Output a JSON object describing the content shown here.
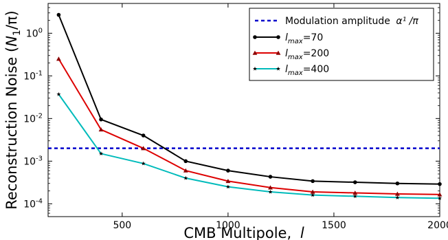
{
  "chart_data": {
    "type": "line",
    "title": "",
    "xlabel": "CMB Multipole, l",
    "ylabel": "Reconstruction Noise (N1/π)",
    "xlim": [
      150,
      2000
    ],
    "ylim": [
      5e-05,
      5
    ],
    "yscale": "log",
    "grid": false,
    "legend_position": "top-right",
    "x_ticks": [
      500,
      1000,
      1500,
      2000
    ],
    "x_tick_labels": [
      "500",
      "1000",
      "1500",
      "2000"
    ],
    "y_ticks": [
      0.0001,
      0.001,
      0.01,
      0.1,
      1
    ],
    "y_tick_labels": [
      {
        "base": "10",
        "exp": "-4"
      },
      {
        "base": "10",
        "exp": "-3"
      },
      {
        "base": "10",
        "exp": "-2"
      },
      {
        "base": "10",
        "exp": "-1"
      },
      {
        "base": "10",
        "exp": "0"
      }
    ],
    "reference_line": {
      "name": "Modulation amplitude α1/π",
      "value": 0.002,
      "color": "#0000cc",
      "style": "dashed"
    },
    "x": [
      200,
      400,
      600,
      800,
      1000,
      1200,
      1400,
      1600,
      1800,
      2000
    ],
    "series": [
      {
        "name": "lmax=70",
        "color": "#000000",
        "marker": "circle",
        "values": [
          2.7,
          0.0095,
          0.004,
          0.001,
          0.0006,
          0.00043,
          0.00034,
          0.00032,
          0.0003,
          0.00029
        ]
      },
      {
        "name": "lmax=200",
        "color": "#dd0000",
        "marker": "triangle",
        "values": [
          0.25,
          0.0055,
          0.002,
          0.0006,
          0.00034,
          0.00024,
          0.00019,
          0.00018,
          0.00017,
          0.000165
        ]
      },
      {
        "name": "lmax=400",
        "color": "#00bbbb",
        "marker": "star",
        "values": [
          0.037,
          0.0015,
          0.00088,
          0.0004,
          0.00025,
          0.00019,
          0.00016,
          0.00015,
          0.00014,
          0.000135
        ]
      }
    ]
  },
  "legend": {
    "ref_label": "Modulation amplitude",
    "ref_math": "α¹ /π",
    "lmax_symbol": "l",
    "lmax_sub": "max",
    "items": [
      {
        "value": "=70"
      },
      {
        "value": "=200"
      },
      {
        "value": "=400"
      }
    ]
  },
  "axis_titles": {
    "x_text": "CMB Multipole,",
    "x_math": "l",
    "y_text": "Reconstruction Noise (",
    "y_math_n": "N",
    "y_math_sub": "1",
    "y_math_rest": "/π)"
  }
}
